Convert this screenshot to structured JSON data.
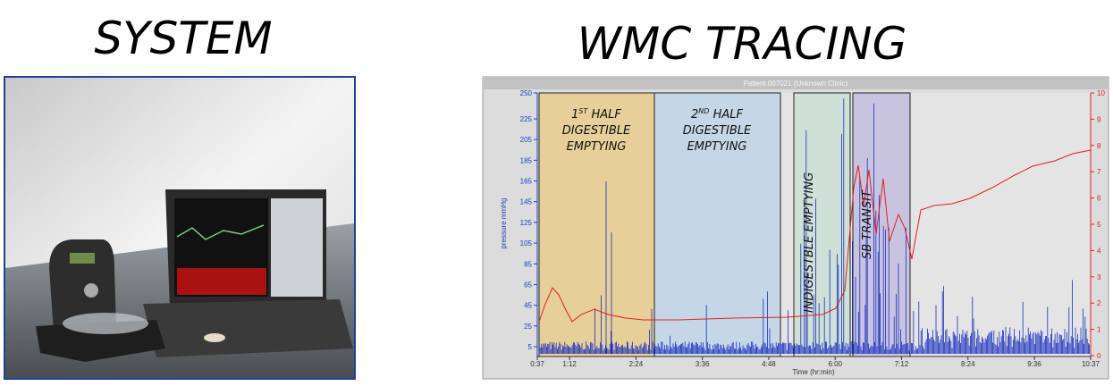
{
  "slide": {
    "left_title": "SYSTEM",
    "right_title": "WMC TRACING"
  },
  "tracing": {
    "header": "Patient 007021 (Unknown Clinic)",
    "x_label": "Time (hr:min)",
    "y_label": "pressure mmHg",
    "x_ticks": [
      "0:37",
      "1:12",
      "2:24",
      "3:36",
      "4:48",
      "6:00",
      "7:12",
      "8:24",
      "9:36",
      "10:37"
    ],
    "y_ticks": [
      "5",
      "25",
      "45",
      "65",
      "85",
      "105",
      "125",
      "145",
      "165",
      "185",
      "205",
      "225",
      "250"
    ],
    "y2_ticks": [
      "0",
      "1",
      "2",
      "3",
      "4",
      "5",
      "6",
      "7",
      "8",
      "9",
      "10"
    ],
    "regions": [
      {
        "l1": {
          "main": "1",
          "sup": "ST",
          "rest": " HALF"
        },
        "l2": "DIGESTIBLE",
        "l3": "EMPTYING"
      },
      {
        "l1": {
          "main": "2",
          "sup": "ND",
          "rest": " HALF"
        },
        "l2": "DIGESTIBLE",
        "l3": "EMPTYING"
      },
      {
        "label": "INDIGESTBLE EMPTYING"
      },
      {
        "label": "SB TRANSIT"
      }
    ]
  }
}
